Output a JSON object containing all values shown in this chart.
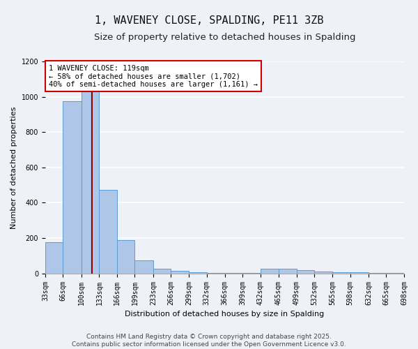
{
  "title": "1, WAVENEY CLOSE, SPALDING, PE11 3ZB",
  "subtitle": "Size of property relative to detached houses in Spalding",
  "xlabel": "Distribution of detached houses by size in Spalding",
  "ylabel": "Number of detached properties",
  "bin_edges": [
    33,
    66,
    100,
    133,
    166,
    199,
    233,
    266,
    299,
    332,
    366,
    399,
    432,
    465,
    499,
    532,
    565,
    598,
    632,
    665,
    698
  ],
  "bar_heights": [
    175,
    975,
    1050,
    475,
    190,
    75,
    25,
    15,
    8,
    4,
    2,
    1,
    28,
    28,
    18,
    10,
    8,
    5,
    3,
    2
  ],
  "bar_color": "#aec6e8",
  "bar_edge_color": "#5b9bd5",
  "property_size": 119,
  "property_label": "1 WAVENEY CLOSE: 119sqm\n← 58% of detached houses are smaller (1,702)\n40% of semi-detached houses are larger (1,161) →",
  "annotation_box_color": "#cc0000",
  "vline_color": "#8b0000",
  "ylim": [
    0,
    1200
  ],
  "background_color": "#eef2f8",
  "grid_color": "#ffffff",
  "footer_line1": "Contains HM Land Registry data © Crown copyright and database right 2025.",
  "footer_line2": "Contains public sector information licensed under the Open Government Licence v3.0.",
  "title_fontsize": 11,
  "subtitle_fontsize": 9.5,
  "axis_label_fontsize": 8,
  "tick_fontsize": 7,
  "annotation_fontsize": 7.5,
  "footer_fontsize": 6.5,
  "ylabel_fontsize": 8
}
